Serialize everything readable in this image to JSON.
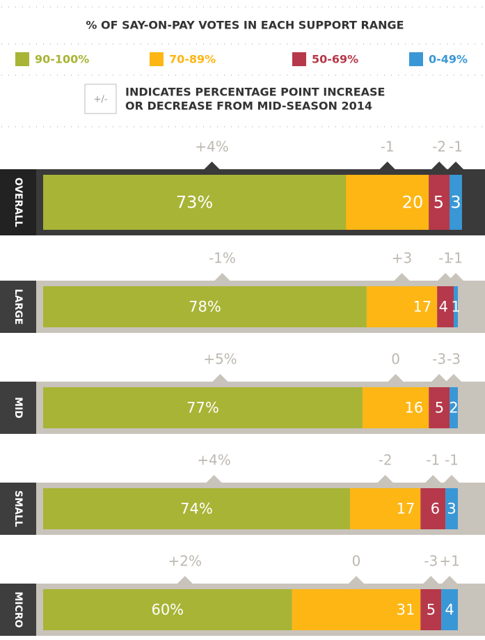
{
  "chart_data": {
    "type": "bar",
    "orientation": "horizontal",
    "stacked": true,
    "title": "% OF SAY-ON-PAY VOTES IN EACH SUPPORT RANGE",
    "note_symbol": "+/-",
    "note": [
      "INDICATES PERCENTAGE POINT INCREASE",
      "OR DECREASE FROM MID-SEASON 2014"
    ],
    "categories": [
      "OVERALL",
      "LARGE",
      "MID",
      "SMALL",
      "MICRO"
    ],
    "series": [
      {
        "name": "90-100%",
        "color": "#a8b436",
        "values": [
          73,
          78,
          77,
          74,
          60
        ],
        "value_labels": [
          "73%",
          "78%",
          "77%",
          "74%",
          "60%"
        ],
        "changes": [
          4,
          -1,
          5,
          4,
          2
        ],
        "change_labels": [
          "+4%",
          "-1%",
          "+5%",
          "+4%",
          "+2%"
        ]
      },
      {
        "name": "70-89%",
        "color": "#fdb614",
        "values": [
          20,
          17,
          16,
          17,
          31
        ],
        "changes": [
          -1,
          3,
          0,
          -2,
          0
        ],
        "change_labels": [
          "-1",
          "+3",
          "0",
          "-2",
          "0"
        ]
      },
      {
        "name": "50-69%",
        "color": "#b5394a",
        "values": [
          5,
          4,
          5,
          6,
          5
        ],
        "changes": [
          -2,
          -1,
          -3,
          -1,
          -3
        ],
        "change_labels": [
          "-2",
          "-1",
          "-3",
          "-1",
          "-3"
        ]
      },
      {
        "name": "0-49%",
        "color": "#3a97d5",
        "values": [
          3,
          1,
          2,
          3,
          4
        ],
        "changes": [
          -1,
          -1,
          -3,
          -1,
          1
        ],
        "change_labels": [
          "-1",
          "-1",
          "-3",
          "-1",
          "+1"
        ]
      }
    ]
  }
}
